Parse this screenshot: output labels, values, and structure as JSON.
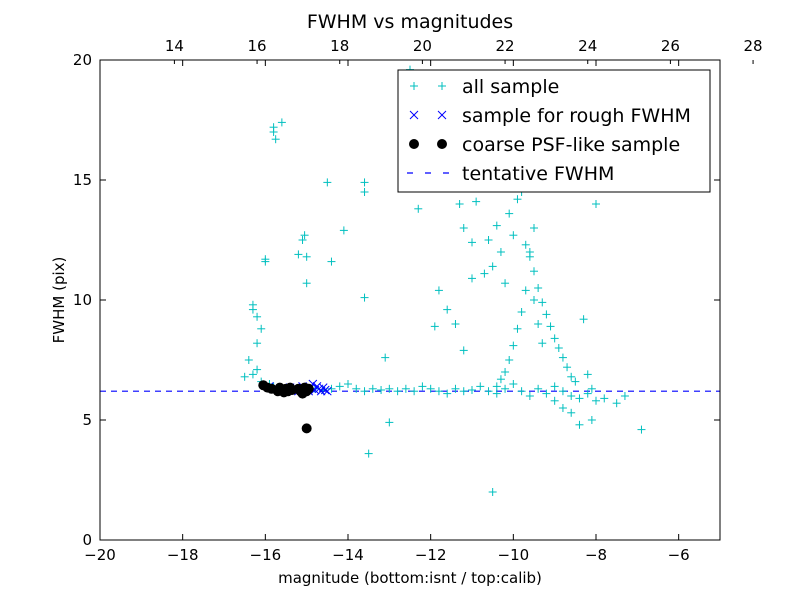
{
  "chart_data": {
    "type": "scatter",
    "title": "FWHM vs magnitudes",
    "xlabel": "magnitude (bottom:isnt / top:calib)",
    "ylabel": "FWHM (pix)",
    "xlim": [
      -20,
      -5
    ],
    "ylim": [
      0,
      20
    ],
    "x_ticks": [
      -20,
      -18,
      -16,
      -14,
      -12,
      -10,
      -8,
      -6
    ],
    "x_tick_labels": [
      "−20",
      "−18",
      "−16",
      "−14",
      "−12",
      "−10",
      "−8",
      "−6"
    ],
    "y_ticks": [
      0,
      5,
      10,
      15,
      20
    ],
    "y_tick_labels": [
      "0",
      "5",
      "10",
      "15",
      "20"
    ],
    "top_axis": {
      "label_offset": 32.2,
      "ticks": [
        14,
        16,
        18,
        20,
        22,
        24,
        26,
        28
      ],
      "tick_labels": [
        "14",
        "16",
        "18",
        "20",
        "22",
        "24",
        "26",
        "28"
      ]
    },
    "legend": {
      "location": "upper right",
      "entries": [
        "all sample",
        "sample for rough FWHM",
        "coarse PSF-like sample",
        "tentative FWHM"
      ]
    },
    "colors": {
      "all_sample": "#00bfbf",
      "rough_sample": "#0000ff",
      "psf_sample": "#000000",
      "tentative_line": "#0000ff"
    },
    "tentative_fwhm": 6.2,
    "series": [
      {
        "name": "all sample",
        "marker": "+",
        "points": [
          [
            -16.5,
            6.8
          ],
          [
            -16.4,
            7.5
          ],
          [
            -16.3,
            6.9
          ],
          [
            -16.2,
            7.1
          ],
          [
            -16.1,
            6.6
          ],
          [
            -15.9,
            6.5
          ],
          [
            -15.8,
            6.4
          ],
          [
            -15.6,
            6.3
          ],
          [
            -15.4,
            6.2
          ],
          [
            -15.2,
            6.3
          ],
          [
            -15.0,
            6.2
          ],
          [
            -14.8,
            6.3
          ],
          [
            -14.6,
            6.25
          ],
          [
            -14.4,
            6.3
          ],
          [
            -14.2,
            6.4
          ],
          [
            -14.0,
            6.5
          ],
          [
            -13.8,
            6.3
          ],
          [
            -13.6,
            6.2
          ],
          [
            -13.4,
            6.3
          ],
          [
            -13.2,
            6.25
          ],
          [
            -13.0,
            6.3
          ],
          [
            -12.8,
            6.2
          ],
          [
            -12.6,
            6.3
          ],
          [
            -12.4,
            6.2
          ],
          [
            -12.2,
            6.4
          ],
          [
            -12.0,
            6.3
          ],
          [
            -11.8,
            6.2
          ],
          [
            -11.6,
            6.1
          ],
          [
            -11.4,
            6.3
          ],
          [
            -11.2,
            6.2
          ],
          [
            -11.0,
            6.25
          ],
          [
            -10.8,
            6.4
          ],
          [
            -10.6,
            6.2
          ],
          [
            -10.4,
            6.1
          ],
          [
            -10.2,
            6.3
          ],
          [
            -10.0,
            6.5
          ],
          [
            -9.8,
            6.2
          ],
          [
            -9.6,
            6.0
          ],
          [
            -9.4,
            6.3
          ],
          [
            -9.2,
            6.1
          ],
          [
            -9.0,
            6.4
          ],
          [
            -8.8,
            6.2
          ],
          [
            -8.6,
            6.0
          ],
          [
            -8.4,
            5.9
          ],
          [
            -8.2,
            6.1
          ],
          [
            -8.0,
            5.8
          ],
          [
            -7.8,
            5.9
          ],
          [
            -7.5,
            5.7
          ],
          [
            -7.3,
            6.0
          ],
          [
            -6.9,
            4.6
          ],
          [
            -16.3,
            9.8
          ],
          [
            -16.3,
            9.6
          ],
          [
            -16.2,
            9.3
          ],
          [
            -16.1,
            8.8
          ],
          [
            -16.2,
            8.2
          ],
          [
            -16.0,
            11.6
          ],
          [
            -16.0,
            11.7
          ],
          [
            -15.8,
            17.2
          ],
          [
            -15.8,
            17.0
          ],
          [
            -15.75,
            16.7
          ],
          [
            -15.6,
            17.4
          ],
          [
            -15.2,
            11.9
          ],
          [
            -15.1,
            12.5
          ],
          [
            -15.05,
            12.7
          ],
          [
            -15.0,
            11.8
          ],
          [
            -15.0,
            10.7
          ],
          [
            -14.5,
            14.9
          ],
          [
            -14.4,
            11.6
          ],
          [
            -14.1,
            12.9
          ],
          [
            -13.6,
            14.9
          ],
          [
            -13.6,
            14.5
          ],
          [
            -13.6,
            10.1
          ],
          [
            -13.1,
            7.6
          ],
          [
            -13.0,
            4.9
          ],
          [
            -13.5,
            3.6
          ],
          [
            -12.5,
            19.6
          ],
          [
            -12.3,
            13.8
          ],
          [
            -11.9,
            8.9
          ],
          [
            -11.8,
            10.4
          ],
          [
            -11.6,
            9.6
          ],
          [
            -11.4,
            9.0
          ],
          [
            -11.3,
            14.0
          ],
          [
            -11.2,
            13.0
          ],
          [
            -11.0,
            12.4
          ],
          [
            -11.2,
            7.9
          ],
          [
            -11.0,
            10.9
          ],
          [
            -10.9,
            14.1
          ],
          [
            -10.7,
            11.1
          ],
          [
            -10.6,
            12.5
          ],
          [
            -10.5,
            11.4
          ],
          [
            -10.4,
            13.1
          ],
          [
            -10.3,
            12.0
          ],
          [
            -10.2,
            10.7
          ],
          [
            -10.1,
            13.6
          ],
          [
            -10.0,
            12.7
          ],
          [
            -10.5,
            2.0
          ],
          [
            -9.8,
            14.5
          ],
          [
            -9.7,
            12.3
          ],
          [
            -9.6,
            11.8
          ],
          [
            -9.5,
            11.2
          ],
          [
            -9.4,
            10.5
          ],
          [
            -9.3,
            9.9
          ],
          [
            -9.2,
            9.4
          ],
          [
            -9.1,
            8.9
          ],
          [
            -9.0,
            8.4
          ],
          [
            -8.9,
            8.0
          ],
          [
            -8.8,
            7.6
          ],
          [
            -8.7,
            7.2
          ],
          [
            -8.6,
            6.8
          ],
          [
            -8.5,
            6.6
          ],
          [
            -9.6,
            12.0
          ],
          [
            -9.5,
            10.0
          ],
          [
            -9.4,
            9.0
          ],
          [
            -9.3,
            8.2
          ],
          [
            -9.7,
            10.4
          ],
          [
            -9.8,
            9.5
          ],
          [
            -9.9,
            8.8
          ],
          [
            -10.0,
            8.1
          ],
          [
            -10.1,
            7.5
          ],
          [
            -10.2,
            7.0
          ],
          [
            -10.3,
            6.7
          ],
          [
            -10.4,
            6.4
          ],
          [
            -8.3,
            9.2
          ],
          [
            -8.2,
            6.9
          ],
          [
            -8.1,
            5.0
          ],
          [
            -8.4,
            4.8
          ],
          [
            -8.6,
            5.3
          ],
          [
            -8.8,
            5.5
          ],
          [
            -9.0,
            5.8
          ],
          [
            -8.0,
            14.0
          ],
          [
            -8.1,
            6.3
          ],
          [
            -9.5,
            13.0
          ],
          [
            -9.9,
            14.2
          ]
        ]
      },
      {
        "name": "sample for rough FWHM",
        "marker": "x",
        "points": [
          [
            -15.9,
            6.4
          ],
          [
            -15.7,
            6.3
          ],
          [
            -15.5,
            6.25
          ],
          [
            -15.3,
            6.3
          ],
          [
            -15.2,
            6.2
          ],
          [
            -15.0,
            6.3
          ],
          [
            -14.9,
            6.35
          ],
          [
            -14.8,
            6.25
          ],
          [
            -14.75,
            6.4
          ],
          [
            -14.7,
            6.3
          ],
          [
            -14.65,
            6.2
          ],
          [
            -14.6,
            6.35
          ],
          [
            -14.55,
            6.25
          ],
          [
            -14.5,
            6.2
          ],
          [
            -15.1,
            6.4
          ],
          [
            -14.95,
            6.2
          ],
          [
            -14.85,
            6.5
          ],
          [
            -15.4,
            6.35
          ]
        ]
      },
      {
        "name": "coarse PSF-like sample",
        "marker": "o",
        "points": [
          [
            -16.05,
            6.45
          ],
          [
            -15.95,
            6.35
          ],
          [
            -15.85,
            6.3
          ],
          [
            -15.7,
            6.2
          ],
          [
            -15.65,
            6.35
          ],
          [
            -15.6,
            6.25
          ],
          [
            -15.55,
            6.15
          ],
          [
            -15.5,
            6.3
          ],
          [
            -15.45,
            6.2
          ],
          [
            -15.4,
            6.35
          ],
          [
            -15.35,
            6.25
          ],
          [
            -15.2,
            6.3
          ],
          [
            -15.15,
            6.2
          ],
          [
            -15.1,
            6.1
          ],
          [
            -15.05,
            6.35
          ],
          [
            -15.0,
            6.2
          ],
          [
            -14.95,
            6.3
          ],
          [
            -15.0,
            4.65
          ]
        ]
      }
    ]
  }
}
